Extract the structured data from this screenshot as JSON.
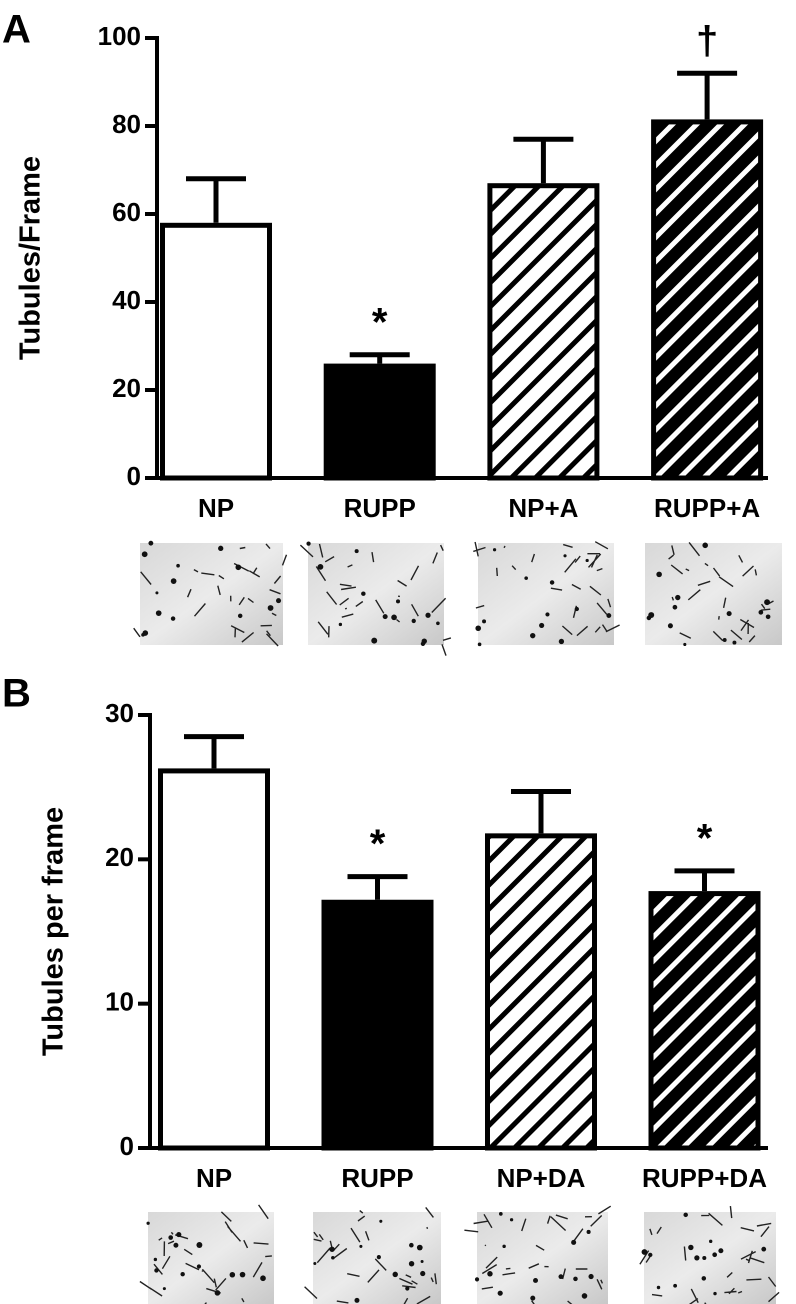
{
  "chart_data": [
    {
      "type": "bar",
      "panel_label": "A",
      "y_label": "Tubules/Frame",
      "categories": [
        "NP",
        "RUPP",
        "NP+A",
        "RUPP+A"
      ],
      "values": [
        58,
        26,
        67,
        81.5
      ],
      "errors": [
        10,
        2,
        10,
        10.5
      ],
      "colors": [
        "#ffffff",
        "#000000",
        "#ffffff",
        "#000000"
      ],
      "hatch": [
        false,
        false,
        true,
        true
      ],
      "annotations": [
        null,
        "*",
        null,
        "†"
      ],
      "ylim": [
        0,
        100
      ],
      "yticks": [
        0,
        20,
        40,
        60,
        80,
        100
      ]
    },
    {
      "type": "bar",
      "panel_label": "B",
      "y_label": "Tubules per frame",
      "categories": [
        "NP",
        "RUPP",
        "NP+DA",
        "RUPP+DA"
      ],
      "values": [
        26.3,
        17.2,
        21.8,
        17.8
      ],
      "errors": [
        2.2,
        1.6,
        2.9,
        1.4
      ],
      "colors": [
        "#ffffff",
        "#000000",
        "#ffffff",
        "#000000"
      ],
      "hatch": [
        false,
        false,
        true,
        true
      ],
      "annotations": [
        null,
        "*",
        null,
        "*"
      ],
      "ylim": [
        0,
        30
      ],
      "yticks": [
        0,
        10,
        20,
        30
      ]
    }
  ]
}
